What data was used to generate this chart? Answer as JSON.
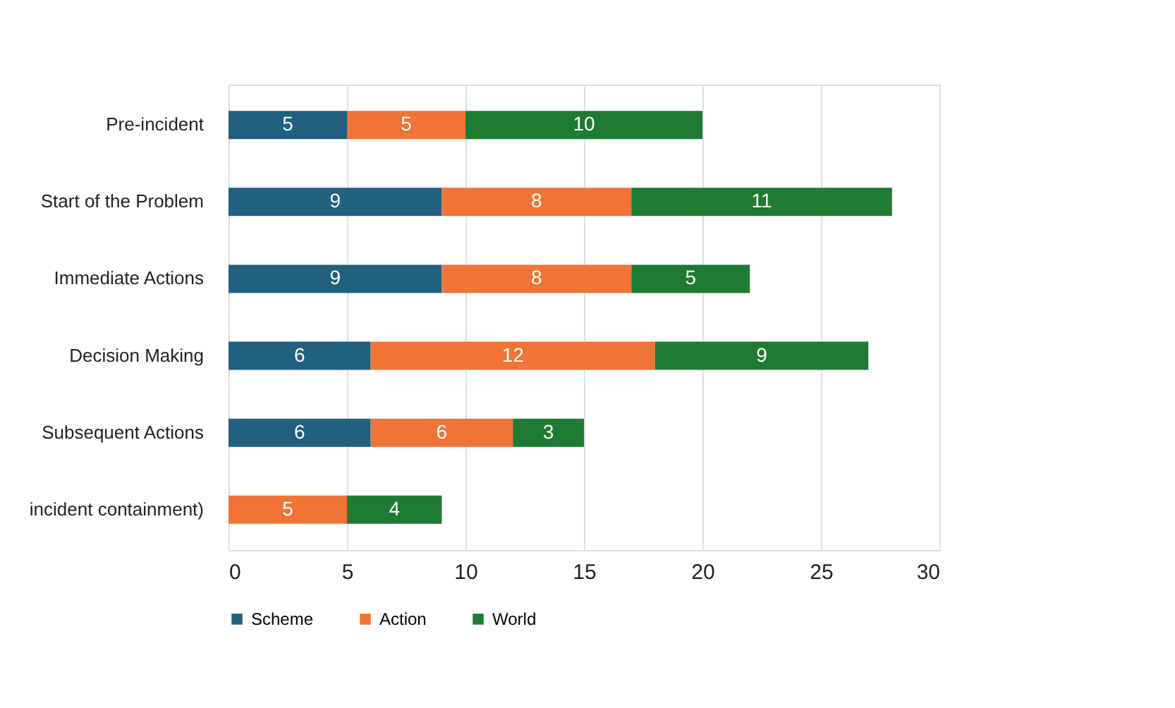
{
  "chart_data": {
    "type": "bar",
    "orientation": "horizontal",
    "stacked": true,
    "categories": [
      "Pre-incident",
      "Start of the Problem",
      "Immediate Actions",
      "Decision Making",
      "Subsequent Actions",
      "incident containment)"
    ],
    "series": [
      {
        "name": "Scheme",
        "color": "#22607f",
        "values": [
          5,
          9,
          9,
          6,
          6,
          0
        ],
        "value_labels": [
          "5",
          "9",
          "9",
          "6",
          "6",
          null
        ]
      },
      {
        "name": "Action",
        "color": "#ef7436",
        "values": [
          5,
          8,
          8,
          12,
          6,
          5
        ],
        "value_labels": [
          "5",
          "8",
          "8",
          "12",
          "6",
          "5"
        ]
      },
      {
        "name": "World",
        "color": "#1f7a34",
        "values": [
          10,
          11,
          5,
          9,
          3,
          4
        ],
        "value_labels": [
          "10",
          "11",
          "5",
          "9",
          "3",
          "4"
        ]
      }
    ],
    "xlim": [
      0,
      30
    ],
    "xticks": [
      0,
      5,
      10,
      15,
      20,
      25,
      30
    ],
    "grid": "x",
    "legend": "bottom"
  }
}
